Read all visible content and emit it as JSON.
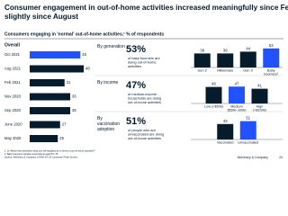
{
  "header": {
    "title": "Consumer engagement in out-of-home activities increased meaningfully since February but declined slightly since August",
    "subtitle": "Consumers engaging in 'normal' out-of-home activities,¹ % of respondents"
  },
  "chart_data": [
    {
      "type": "hbar",
      "title": "Overall",
      "categories": [
        "Oct 2021",
        "Aug 2021",
        "Feb 2021",
        "Nov 2020",
        "Sep 2020",
        "June 2020",
        "May 2020"
      ],
      "values": [
        45,
        48,
        31,
        36,
        36,
        27,
        25
      ],
      "colors": [
        "#2251ff",
        "#051c2c",
        "#051c2c",
        "#051c2c",
        "#051c2c",
        "#051c2c",
        "#051c2c"
      ]
    },
    {
      "type": "bar",
      "title": "By generation",
      "highlight": "53%",
      "description": "of baby boomers are doing out-of-home activities",
      "categories": [
        "Gen Z",
        "Millennials",
        "Gen X",
        "Baby boomers²"
      ],
      "values": [
        39,
        39,
        44,
        53
      ],
      "colors": [
        "#051c2c",
        "#051c2c",
        "#051c2c",
        "#2251ff"
      ]
    },
    {
      "type": "bar",
      "title": "By income",
      "highlight": "47%",
      "description": "of medium-income households are doing out-of-home activities",
      "categories": [
        "Low (<$50k)",
        "Medium ($50k–100k)",
        "High (>$100k)"
      ],
      "values": [
        46,
        47,
        41
      ],
      "colors": [
        "#051c2c",
        "#2251ff",
        "#051c2c"
      ]
    },
    {
      "type": "bar",
      "title": "By vaccination adoption",
      "highlight": "51%",
      "description": "of people who are unvaccinated are doing out-of-home activities",
      "categories": [
        "Vaccinated",
        "Unvaccinated"
      ],
      "values": [
        43,
        51
      ],
      "colors": [
        "#051c2c",
        "#2251ff"
      ]
    }
  ],
  "footer": {
    "notes": [
      "1. Q: Which best describes what you will regularly do in terms of out-of-home activities?",
      "2. Baby boomers includes respondents aged 57–75."
    ],
    "source": "Source: McKinsey & Company COVID-19 US Consumer Pulse Survey",
    "brand": "McKinsey & Company",
    "page": "24"
  }
}
